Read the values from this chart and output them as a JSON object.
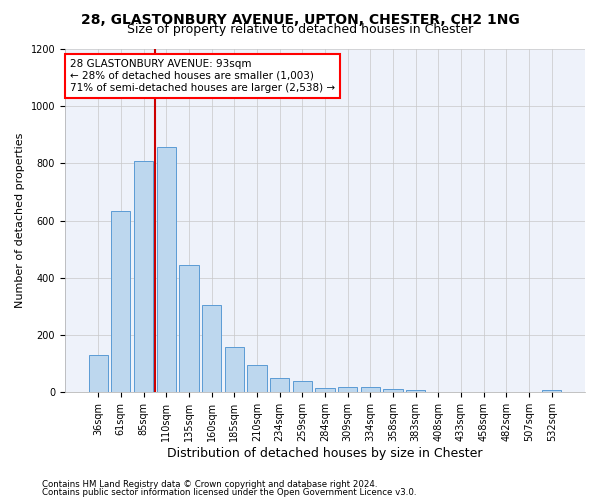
{
  "title_line1": "28, GLASTONBURY AVENUE, UPTON, CHESTER, CH2 1NG",
  "title_line2": "Size of property relative to detached houses in Chester",
  "xlabel": "Distribution of detached houses by size in Chester",
  "ylabel": "Number of detached properties",
  "bar_labels": [
    "36sqm",
    "61sqm",
    "85sqm",
    "110sqm",
    "135sqm",
    "160sqm",
    "185sqm",
    "210sqm",
    "234sqm",
    "259sqm",
    "284sqm",
    "309sqm",
    "334sqm",
    "358sqm",
    "383sqm",
    "408sqm",
    "433sqm",
    "458sqm",
    "482sqm",
    "507sqm",
    "532sqm"
  ],
  "bar_values": [
    130,
    635,
    808,
    858,
    445,
    305,
    158,
    95,
    50,
    38,
    15,
    20,
    18,
    12,
    8,
    0,
    0,
    0,
    0,
    0,
    8
  ],
  "bar_color": "#bdd7ee",
  "bar_edge_color": "#5b9bd5",
  "ylim": [
    0,
    1200
  ],
  "yticks": [
    0,
    200,
    400,
    600,
    800,
    1000,
    1200
  ],
  "vline_x": 2.5,
  "vline_color": "#cc0000",
  "annotation_line1": "28 GLASTONBURY AVENUE: 93sqm",
  "annotation_line2": "← 28% of detached houses are smaller (1,003)",
  "annotation_line3": "71% of semi-detached houses are larger (2,538) →",
  "footnote1": "Contains HM Land Registry data © Crown copyright and database right 2024.",
  "footnote2": "Contains public sector information licensed under the Open Government Licence v3.0.",
  "bg_color": "#eef2fa",
  "grid_color": "#c8c8c8",
  "title1_fontsize": 10,
  "title2_fontsize": 9,
  "ylabel_fontsize": 8,
  "xlabel_fontsize": 9,
  "tick_fontsize": 7,
  "annot_fontsize": 7.5,
  "footnote_fontsize": 6.2
}
